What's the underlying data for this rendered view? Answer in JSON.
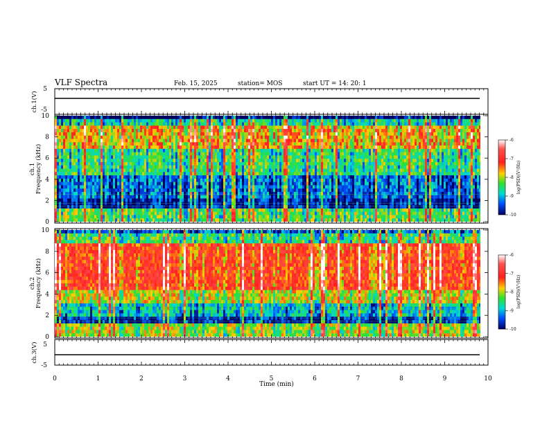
{
  "header": {
    "title": "VLF Spectra",
    "date": "Feb. 15, 2025",
    "station": "station= MOS",
    "start_ut": "start  UT =   14: 20: 1"
  },
  "chart_data": [
    {
      "type": "line",
      "panel": "ch1-waveform",
      "ylabel": "ch.1(V)",
      "yticks": [
        "5",
        "-5"
      ],
      "ylim": [
        -5,
        5
      ],
      "x": [
        0,
        9.8
      ],
      "y": [
        0,
        0
      ]
    },
    {
      "type": "heatmap",
      "panel": "ch1-spectrogram",
      "ylabel": [
        "ch.1",
        "Frequency (kHz)"
      ],
      "yticks": [
        "0",
        "2",
        "4",
        "6",
        "8",
        "10"
      ],
      "ylim": [
        0,
        10
      ],
      "xlim": [
        0,
        9.8
      ],
      "colorbar": {
        "label": "log(PSD)(V²/Hz)",
        "ticks": [
          "-6",
          "-7",
          "-8",
          "-9",
          "-10"
        ],
        "range": [
          -10,
          -6
        ]
      }
    },
    {
      "type": "heatmap",
      "panel": "ch2-spectrogram",
      "ylabel": [
        "ch.2",
        "Frequency (kHz)"
      ],
      "yticks": [
        "0",
        "2",
        "4",
        "6",
        "8",
        "10"
      ],
      "ylim": [
        0,
        10
      ],
      "xlim": [
        0,
        9.8
      ],
      "colorbar": {
        "label": "log(PSD)(V²/Hz)",
        "ticks": [
          "-6",
          "-7",
          "-8",
          "-9",
          "-10"
        ],
        "range": [
          -10,
          -6
        ]
      }
    },
    {
      "type": "line",
      "panel": "ch3-waveform",
      "ylabel": "ch.3(V)",
      "yticks": [
        "5",
        "-5"
      ],
      "ylim": [
        -5,
        5
      ],
      "x": [
        0,
        9.8
      ],
      "y": [
        0,
        0
      ]
    }
  ],
  "xaxis": {
    "label": "Time (min)",
    "ticks": [
      "0",
      "1",
      "2",
      "3",
      "4",
      "5",
      "6",
      "7",
      "8",
      "9",
      "10"
    ],
    "xlim": [
      0,
      10
    ]
  }
}
